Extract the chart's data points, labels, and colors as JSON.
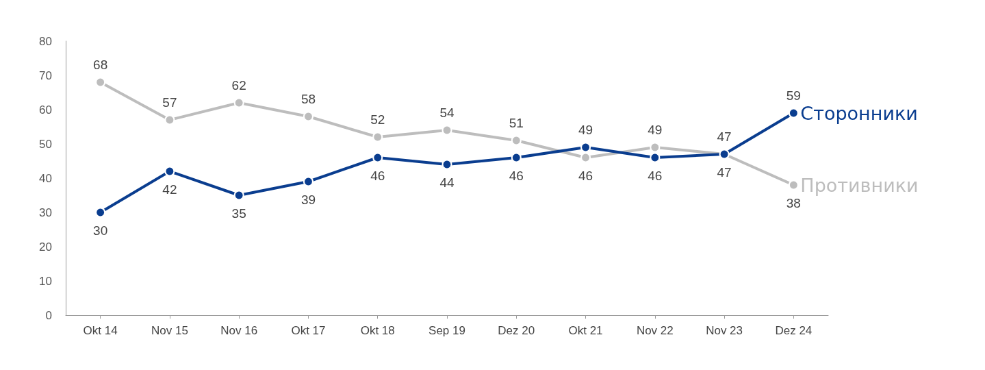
{
  "chart_data": {
    "type": "line",
    "categories": [
      "Okt 14",
      "Nov 15",
      "Nov 16",
      "Okt 17",
      "Okt 18",
      "Sep 19",
      "Dez 20",
      "Okt 21",
      "Nov 22",
      "Nov 23",
      "Dez 24"
    ],
    "series": [
      {
        "name": "Сторонники",
        "color": "#0a3d8f",
        "values": [
          30,
          42,
          35,
          39,
          46,
          44,
          46,
          49,
          46,
          47,
          59
        ]
      },
      {
        "name": "Противники",
        "color": "#bdbdbd",
        "values": [
          68,
          57,
          62,
          58,
          52,
          54,
          51,
          46,
          49,
          47,
          38
        ]
      }
    ],
    "ylim": [
      0,
      80
    ],
    "yticks": [
      0,
      10,
      20,
      30,
      40,
      50,
      60,
      70,
      80
    ],
    "grid": false,
    "marker": "circle",
    "line_style": "solid",
    "data_labels": true
  }
}
